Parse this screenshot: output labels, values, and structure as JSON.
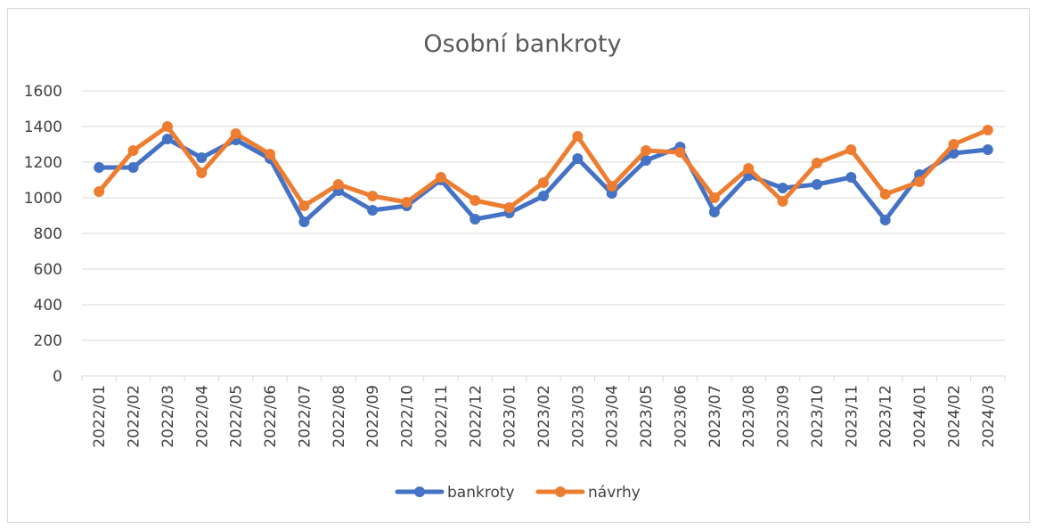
{
  "chart_data": {
    "type": "line",
    "title": "Osobní bankroty",
    "xlabel": "",
    "ylabel": "",
    "ylim": [
      0,
      1600
    ],
    "yticks": [
      0,
      200,
      400,
      600,
      800,
      1000,
      1200,
      1400,
      1600
    ],
    "grid": true,
    "legend_position": "bottom",
    "categories": [
      "2022/01",
      "2022/02",
      "2022/03",
      "2022/04",
      "2022/05",
      "2022/06",
      "2022/07",
      "2022/08",
      "2022/09",
      "2022/10",
      "2022/11",
      "2022/12",
      "2023/01",
      "2023/02",
      "2023/03",
      "2023/04",
      "2023/05",
      "2023/06",
      "2023/07",
      "2023/08",
      "2023/09",
      "2023/10",
      "2023/11",
      "2023/12",
      "2024/01",
      "2024/02",
      "2024/03"
    ],
    "series": [
      {
        "name": "bankroty",
        "color": "#4472c4",
        "values": [
          1170,
          1170,
          1330,
          1225,
          1325,
          1220,
          865,
          1040,
          930,
          955,
          1100,
          880,
          915,
          1010,
          1220,
          1025,
          1210,
          1285,
          920,
          1125,
          1055,
          1075,
          1115,
          875,
          1130,
          1250,
          1270
        ]
      },
      {
        "name": "návrhy",
        "color": "#ed7d31",
        "values": [
          1035,
          1265,
          1400,
          1140,
          1360,
          1245,
          955,
          1075,
          1010,
          975,
          1115,
          985,
          945,
          1085,
          1345,
          1065,
          1265,
          1255,
          1000,
          1165,
          980,
          1195,
          1270,
          1020,
          1090,
          1300,
          1380
        ]
      }
    ]
  }
}
